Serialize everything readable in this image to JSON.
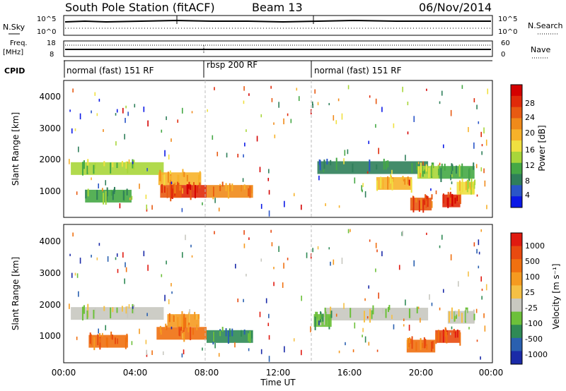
{
  "header": {
    "station": "South Pole Station (fitACF)",
    "beam": "Beam 13",
    "date": "06/Nov/2014"
  },
  "panels": {
    "nsky": {
      "left_label": "N.Sky",
      "right_label": "N.Search",
      "left_ticks": [
        "10^5",
        "10^0"
      ],
      "right_ticks": [
        "10^5",
        "10^0"
      ]
    },
    "freq": {
      "left_label_1": "Freq.",
      "left_label_2": "[MHz]",
      "right_label": "Nave",
      "left_ticks": [
        "18",
        "8"
      ],
      "right_ticks": [
        "60",
        "0"
      ]
    },
    "cpid": {
      "label": "CPID",
      "segments": [
        {
          "name": "normal (fast) 151 RF",
          "start_hour": 0,
          "end_hour": 8.0
        },
        {
          "name": "rbsp 200 RF",
          "start_hour": 8.0,
          "end_hour": 14.0
        },
        {
          "name": "normal (fast) 151 RF",
          "start_hour": 14.0,
          "end_hour": 24.0
        }
      ]
    }
  },
  "chart_data": [
    {
      "type": "heatmap",
      "name": "Power",
      "ylabel": "Slant Range [km]",
      "ylim": [
        180,
        4500
      ],
      "yticks": [
        "1000",
        "2000",
        "3000",
        "4000"
      ],
      "colorbar_label": "Power [dB]",
      "colorbar_ticks": [
        "28",
        "24",
        "20",
        "16",
        "12",
        "8",
        "4"
      ],
      "colors": [
        "#0a18e6",
        "#2a55c8",
        "#2f7f5a",
        "#45a845",
        "#a8d63a",
        "#f0e040",
        "#f7b22a",
        "#f08a1a",
        "#e85a12",
        "#e02a0a",
        "#d40000"
      ],
      "bands": [
        {
          "start_hour": 0.4,
          "end_hour": 5.6,
          "range_km": 1720,
          "level": 4
        },
        {
          "start_hour": 5.3,
          "end_hour": 7.7,
          "range_km": 1400,
          "level": 6
        },
        {
          "start_hour": 6.0,
          "end_hour": 8.0,
          "range_km": 1000,
          "level": 9
        },
        {
          "start_hour": 5.4,
          "end_hour": 6.6,
          "range_km": 1000,
          "level": 8
        },
        {
          "start_hour": 8.0,
          "end_hour": 10.6,
          "range_km": 1000,
          "level": 7
        },
        {
          "start_hour": 1.2,
          "end_hour": 3.8,
          "range_km": 850,
          "level": 3
        },
        {
          "start_hour": 14.2,
          "end_hour": 20.4,
          "range_km": 1750,
          "level": 2
        },
        {
          "start_hour": 17.5,
          "end_hour": 19.5,
          "range_km": 1250,
          "level": 6
        },
        {
          "start_hour": 19.8,
          "end_hour": 21.0,
          "range_km": 1600,
          "level": 4
        },
        {
          "start_hour": 21.0,
          "end_hour": 23.0,
          "range_km": 1600,
          "level": 3
        },
        {
          "start_hour": 19.4,
          "end_hour": 20.6,
          "range_km": 600,
          "level": 8
        },
        {
          "start_hour": 21.2,
          "end_hour": 22.2,
          "range_km": 700,
          "level": 9
        },
        {
          "start_hour": 22.0,
          "end_hour": 23.0,
          "range_km": 1100,
          "level": 5
        }
      ]
    },
    {
      "type": "heatmap",
      "name": "Velocity",
      "ylabel": "Slant Range [km]",
      "ylim": [
        180,
        4500
      ],
      "yticks": [
        "1000",
        "2000",
        "3000",
        "4000"
      ],
      "colorbar_label": "Velocity [m s⁻¹]",
      "colorbar_ticks": [
        "1000",
        "500",
        "100",
        "25",
        "-25",
        "-100",
        "-500",
        "-1000"
      ],
      "colors": [
        "#1a2aa8",
        "#2a60b0",
        "#2f8a55",
        "#6cc03a",
        "#c8c8c0",
        "#f5c045",
        "#f59a20",
        "#f07010",
        "#e84a10",
        "#e01a10"
      ],
      "bands": [
        {
          "start_hour": 0.4,
          "end_hour": 5.6,
          "range_km": 1720,
          "level": 4
        },
        {
          "start_hour": 1.4,
          "end_hour": 3.6,
          "range_km": 850,
          "level": 7
        },
        {
          "start_hour": 5.2,
          "end_hour": 8.0,
          "range_km": 1100,
          "level": 7
        },
        {
          "start_hour": 5.8,
          "end_hour": 7.6,
          "range_km": 1500,
          "level": 6
        },
        {
          "start_hour": 8.0,
          "end_hour": 10.6,
          "range_km": 1000,
          "level": 2
        },
        {
          "start_hour": 14.6,
          "end_hour": 20.4,
          "range_km": 1700,
          "level": 4
        },
        {
          "start_hour": 19.2,
          "end_hour": 20.8,
          "range_km": 700,
          "level": 7
        },
        {
          "start_hour": 20.8,
          "end_hour": 22.2,
          "range_km": 1000,
          "level": 8
        },
        {
          "start_hour": 21.5,
          "end_hour": 23.0,
          "range_km": 1600,
          "level": 4
        },
        {
          "start_hour": 14.0,
          "end_hour": 15.0,
          "range_km": 1500,
          "level": 3
        }
      ]
    }
  ],
  "x_axis": {
    "label": "Time UT",
    "ticks": [
      "00:00",
      "04:00",
      "08:00",
      "12:00",
      "16:00",
      "20:00",
      "00:00"
    ],
    "xlim": [
      0,
      24
    ]
  }
}
